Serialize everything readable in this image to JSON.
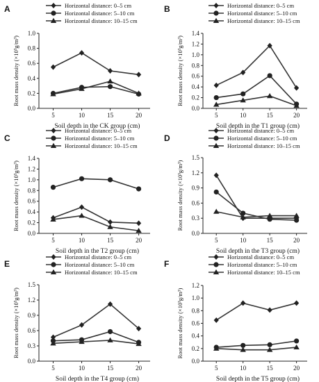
{
  "chart_data": [
    {
      "type": "line",
      "panel_label": "A",
      "xlabel": "Soil depth in the CK group (cm)",
      "ylabel": "Root mass density (×10³g/m³)",
      "x": [
        5,
        10,
        15,
        20
      ],
      "xticks": [
        "5",
        "10",
        "15",
        "20"
      ],
      "ylim": [
        0,
        1.0
      ],
      "yticks": [
        "0.0",
        "0.2",
        "0.4",
        "0.6",
        "0.8",
        "1.0"
      ],
      "series": [
        {
          "name": "Horizontal distance: 0–5 cm",
          "marker": "diamond",
          "values": [
            0.55,
            0.74,
            0.5,
            0.45
          ]
        },
        {
          "name": "Horizontal distance: 5–10 cm",
          "marker": "circle",
          "values": [
            0.2,
            0.28,
            0.29,
            0.19
          ]
        },
        {
          "name": "Horizontal distance: 10–15 cm",
          "marker": "triangle",
          "values": [
            0.19,
            0.26,
            0.36,
            0.2
          ]
        }
      ]
    },
    {
      "type": "line",
      "panel_label": "B",
      "xlabel": "Soil depth in the T1 group (cm)",
      "ylabel": "Root mass density (×10³g/m³)",
      "x": [
        5,
        10,
        15,
        20
      ],
      "xticks": [
        "5",
        "10",
        "15",
        "20"
      ],
      "ylim": [
        0,
        1.4
      ],
      "yticks": [
        "0.0",
        "0.2",
        "0.4",
        "0.6",
        "0.8",
        "1.0",
        "1.2",
        "1.4"
      ],
      "series": [
        {
          "name": "Horizontal distance: 0–5 cm",
          "marker": "diamond",
          "values": [
            0.43,
            0.67,
            1.17,
            0.38
          ]
        },
        {
          "name": "Horizontal distance: 5–10 cm",
          "marker": "circle",
          "values": [
            0.2,
            0.27,
            0.61,
            0.08
          ]
        },
        {
          "name": "Horizontal distance: 10–15 cm",
          "marker": "triangle",
          "values": [
            0.07,
            0.15,
            0.23,
            0.05
          ]
        }
      ]
    },
    {
      "type": "line",
      "panel_label": "C",
      "xlabel": "Soil depth in the T2 group (cm)",
      "ylabel": "Root mass density (×10³g/m³)",
      "x": [
        5,
        10,
        15,
        20
      ],
      "xticks": [
        "5",
        "10",
        "15",
        "20"
      ],
      "ylim": [
        0,
        1.4
      ],
      "yticks": [
        "0.0",
        "0.2",
        "0.4",
        "0.6",
        "0.8",
        "1.0",
        "1.2",
        "1.4"
      ],
      "series": [
        {
          "name": "Horizontal distance: 0–5 cm",
          "marker": "diamond",
          "values": [
            0.29,
            0.49,
            0.21,
            0.19
          ]
        },
        {
          "name": "Horizontal distance: 5–10 cm",
          "marker": "circle",
          "values": [
            0.86,
            1.02,
            1.0,
            0.83
          ]
        },
        {
          "name": "Horizontal distance: 10–15 cm",
          "marker": "triangle",
          "values": [
            0.26,
            0.33,
            0.12,
            0.05
          ]
        }
      ]
    },
    {
      "type": "line",
      "panel_label": "D",
      "xlabel": "Soil depth in the T3 group (cm)",
      "ylabel": "Root mass density (×10³g/m³)",
      "x": [
        5,
        10,
        15,
        20
      ],
      "xticks": [
        "5",
        "10",
        "15",
        "20"
      ],
      "ylim": [
        0,
        1.5
      ],
      "yticks": [
        "0.0",
        "0.3",
        "0.6",
        "0.9",
        "1.2",
        "1.5"
      ],
      "series": [
        {
          "name": "Horizontal distance: 0–5 cm",
          "marker": "diamond",
          "values": [
            1.15,
            0.3,
            0.3,
            0.3
          ]
        },
        {
          "name": "Horizontal distance: 5–10 cm",
          "marker": "circle",
          "values": [
            0.82,
            0.4,
            0.28,
            0.26
          ]
        },
        {
          "name": "Horizontal distance: 10–15 cm",
          "marker": "triangle",
          "values": [
            0.43,
            0.32,
            0.35,
            0.35
          ]
        }
      ]
    },
    {
      "type": "line",
      "panel_label": "E",
      "xlabel": "Soil depth in the T4 group (cm)",
      "ylabel": "Root mass density (×10³g/m³)",
      "x": [
        5,
        10,
        15,
        20
      ],
      "xticks": [
        "5",
        "10",
        "15",
        "20"
      ],
      "ylim": [
        0,
        1.5
      ],
      "yticks": [
        "0.0",
        "0.3",
        "0.6",
        "0.9",
        "1.2",
        "1.5"
      ],
      "series": [
        {
          "name": "Horizontal distance: 0–5 cm",
          "marker": "diamond",
          "values": [
            0.47,
            0.71,
            1.12,
            0.64
          ]
        },
        {
          "name": "Horizontal distance: 5–10 cm",
          "marker": "circle",
          "values": [
            0.4,
            0.42,
            0.58,
            0.37
          ]
        },
        {
          "name": "Horizontal distance: 10–15 cm",
          "marker": "triangle",
          "values": [
            0.35,
            0.38,
            0.41,
            0.34
          ]
        }
      ]
    },
    {
      "type": "line",
      "panel_label": "F",
      "xlabel": "Soil depth in the T5 group (cm)",
      "ylabel": "Root mass density (×10³g/m³)",
      "x": [
        5,
        10,
        15,
        20
      ],
      "xticks": [
        "5",
        "10",
        "15",
        "20"
      ],
      "ylim": [
        0,
        1.2
      ],
      "yticks": [
        "0.0",
        "0.2",
        "0.4",
        "0.6",
        "0.8",
        "1.0",
        "1.2"
      ],
      "series": [
        {
          "name": "Horizontal distance: 0–5 cm",
          "marker": "diamond",
          "values": [
            0.65,
            0.92,
            0.81,
            0.92
          ]
        },
        {
          "name": "Horizontal distance: 5–10 cm",
          "marker": "circle",
          "values": [
            0.22,
            0.25,
            0.26,
            0.32
          ]
        },
        {
          "name": "Horizontal distance: 10–15 cm",
          "marker": "triangle",
          "values": [
            0.2,
            0.18,
            0.18,
            0.22
          ]
        }
      ]
    }
  ]
}
